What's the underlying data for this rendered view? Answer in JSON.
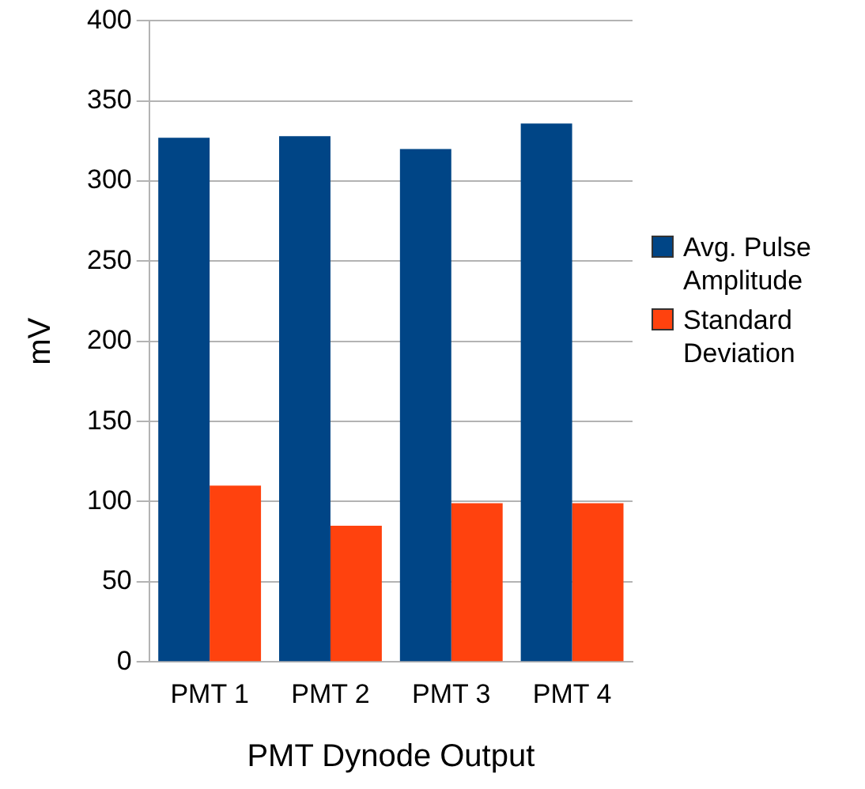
{
  "chart_data": {
    "type": "bar",
    "xlabel": "PMT Dynode Output",
    "ylabel": "mV",
    "categories": [
      "PMT 1",
      "PMT 2",
      "PMT 3",
      "PMT 4"
    ],
    "series": [
      {
        "name": "Avg. Pulse Amplitude",
        "color": "#004586",
        "values": [
          327,
          328,
          320,
          336
        ]
      },
      {
        "name": "Standard Deviation",
        "color": "#ff420e",
        "values": [
          110,
          85,
          99,
          99
        ]
      }
    ],
    "ylim": [
      0,
      400
    ],
    "yticks": [
      0,
      50,
      100,
      150,
      200,
      250,
      300,
      350,
      400
    ],
    "grid": "y",
    "legend": "right"
  }
}
